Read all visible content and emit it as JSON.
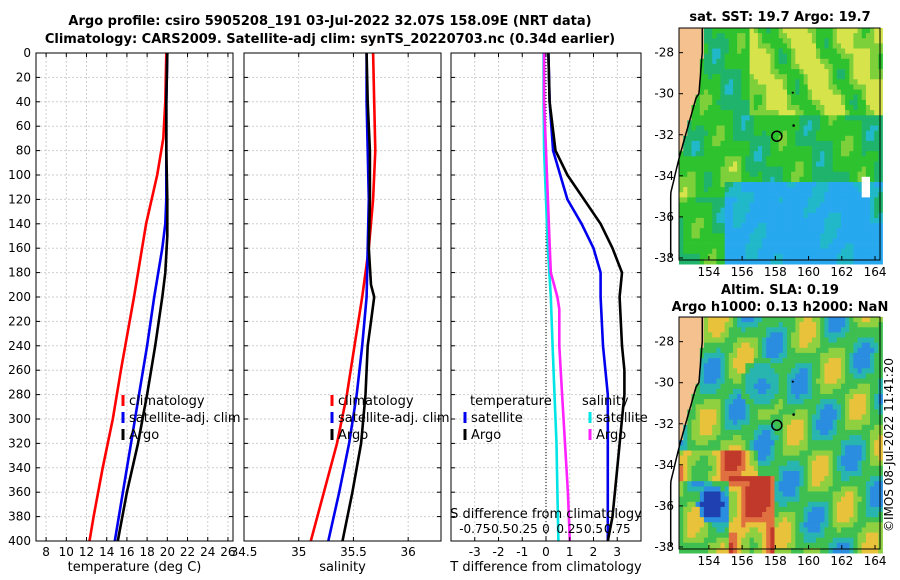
{
  "titles": {
    "line1": "Argo profile: csiro 5905208_191 03-Jul-2022 32.07S 158.09E (NRT data)",
    "line2": "Climatology: CARS2009. Satellite-adj clim: synTS_20220703.nc (0.34d earlier)"
  },
  "maps": {
    "sst_title": "sat. SST: 19.7 Argo: 19.7",
    "sla_title1": "Altim. SLA: 0.19",
    "sla_title2": "Argo h1000: 0.13 h2000: NaN",
    "x_ticks": [
      154,
      156,
      158,
      160,
      162,
      164
    ],
    "y_ticks": [
      -28,
      -30,
      -32,
      -34,
      -36,
      -38
    ],
    "xlim": [
      152.2,
      164.3
    ],
    "ylim": [
      -38.1,
      -26.8
    ],
    "argo_position": {
      "lon": 158.09,
      "lat": -32.07
    }
  },
  "credit": "©IMOS 08-Jul-2022 11:41:20",
  "colors": {
    "climatology": "#ff0000",
    "satellite": "#0000ee",
    "argo": "#000000",
    "sat_salinity": "#00e5e5",
    "argo_salinity": "#ff22ff",
    "land": "#f5c18f",
    "missing": "#ffffff"
  },
  "chart_data": [
    {
      "type": "line",
      "name": "temperature-profile",
      "xlabel": "temperature (deg C)",
      "ylabel": "",
      "xlim": [
        7,
        26.5
      ],
      "ylim": [
        400,
        0
      ],
      "x_ticks": [
        8,
        10,
        12,
        14,
        16,
        18,
        20,
        22,
        24,
        26
      ],
      "y_ticks": [
        0,
        20,
        40,
        60,
        80,
        100,
        120,
        140,
        160,
        180,
        200,
        220,
        240,
        260,
        280,
        300,
        320,
        340,
        360,
        380,
        400
      ],
      "grid": true,
      "legend": {
        "position": "lower-center",
        "labels": [
          "climatology",
          "satellite-adj. clim",
          "Argo"
        ]
      },
      "series": [
        {
          "name": "climatology",
          "depth": [
            0,
            40,
            70,
            100,
            140,
            200,
            260,
            300,
            340,
            380,
            400
          ],
          "values": [
            19.9,
            19.8,
            19.6,
            19.0,
            17.9,
            16.7,
            15.4,
            14.6,
            13.6,
            12.7,
            12.3
          ]
        },
        {
          "name": "satellite-adj. clim",
          "depth": [
            0,
            40,
            80,
            120,
            140,
            160,
            200,
            240,
            280,
            320,
            360,
            400
          ],
          "values": [
            20.0,
            19.9,
            19.9,
            19.9,
            19.8,
            19.5,
            18.7,
            18.0,
            17.2,
            16.4,
            15.6,
            14.8
          ]
        },
        {
          "name": "Argo",
          "depth": [
            0,
            40,
            80,
            120,
            150,
            180,
            200,
            240,
            280,
            320,
            360,
            400
          ],
          "values": [
            20.0,
            19.9,
            19.9,
            20.0,
            20.0,
            19.8,
            19.5,
            18.8,
            18.0,
            17.1,
            16.0,
            15.1
          ]
        }
      ]
    },
    {
      "type": "line",
      "name": "salinity-profile",
      "xlabel": "salinity",
      "xlim": [
        34.5,
        36.3
      ],
      "ylim": [
        400,
        0
      ],
      "x_ticks": [
        34.5,
        35,
        35.5,
        36
      ],
      "grid": true,
      "legend": {
        "position": "lower-center",
        "labels": [
          "climatology",
          "satellite-adj. clim",
          "Argo"
        ]
      },
      "series": [
        {
          "name": "climatology",
          "depth": [
            0,
            40,
            80,
            120,
            160,
            200,
            240,
            280,
            320,
            360,
            400
          ],
          "values": [
            35.68,
            35.69,
            35.7,
            35.68,
            35.64,
            35.58,
            35.51,
            35.44,
            35.35,
            35.23,
            35.11
          ]
        },
        {
          "name": "satellite-adj. clim",
          "depth": [
            0,
            40,
            80,
            120,
            160,
            200,
            240,
            280,
            320,
            360,
            400
          ],
          "values": [
            35.62,
            35.62,
            35.63,
            35.64,
            35.63,
            35.62,
            35.58,
            35.53,
            35.46,
            35.37,
            35.27
          ]
        },
        {
          "name": "Argo",
          "depth": [
            0,
            40,
            80,
            120,
            160,
            190,
            200,
            220,
            240,
            280,
            320,
            360,
            400
          ],
          "values": [
            35.62,
            35.63,
            35.65,
            35.65,
            35.64,
            35.66,
            35.69,
            35.66,
            35.63,
            35.61,
            35.57,
            35.49,
            35.4
          ]
        }
      ]
    },
    {
      "type": "line",
      "name": "difference-profile",
      "xlabel": "T difference from climatology",
      "x2label": "S difference from climatology",
      "xlim": [
        -4,
        4
      ],
      "ylim": [
        400,
        0
      ],
      "x_ticks": [
        -3,
        -2,
        -1,
        0,
        1,
        2,
        3
      ],
      "x2_tick_labels": [
        "-0.75",
        "-0.5",
        "-0.25",
        "0",
        "0.25",
        "0.5",
        "0.75"
      ],
      "grid": true,
      "legend": {
        "position": "center",
        "temperature_title": "temperature",
        "salinity_title": "salinity",
        "temperature_labels": [
          "satellite",
          "Argo"
        ],
        "salinity_labels": [
          "satellite",
          "Argo"
        ]
      },
      "series": [
        {
          "name": "T satellite",
          "depth": [
            0,
            40,
            80,
            120,
            140,
            160,
            180,
            200,
            240,
            280,
            320,
            360,
            400
          ],
          "values": [
            0.1,
            0.15,
            0.3,
            0.9,
            1.5,
            2.0,
            2.3,
            2.3,
            2.4,
            2.6,
            2.6,
            2.6,
            2.6
          ]
        },
        {
          "name": "T Argo",
          "depth": [
            0,
            40,
            80,
            100,
            120,
            140,
            160,
            180,
            200,
            240,
            260,
            280,
            300,
            340,
            380,
            400
          ],
          "values": [
            0.1,
            0.15,
            0.4,
            0.9,
            1.6,
            2.3,
            2.8,
            3.2,
            3.1,
            3.2,
            3.3,
            3.3,
            3.2,
            3.0,
            2.8,
            2.6
          ]
        },
        {
          "name": "S satellite",
          "depth": [
            0,
            40,
            80,
            120,
            160,
            200,
            240,
            280,
            320,
            360,
            400
          ],
          "values": [
            -0.025,
            -0.025,
            -0.02,
            0.0,
            0.02,
            0.05,
            0.07,
            0.09,
            0.11,
            0.12,
            0.13
          ]
        },
        {
          "name": "S Argo",
          "depth": [
            0,
            40,
            80,
            120,
            160,
            180,
            200,
            210,
            220,
            240,
            280,
            320,
            360,
            400
          ],
          "values": [
            -0.02,
            -0.02,
            0.0,
            0.02,
            0.04,
            0.05,
            0.12,
            0.14,
            0.14,
            0.14,
            0.17,
            0.2,
            0.23,
            0.25
          ]
        }
      ]
    }
  ]
}
